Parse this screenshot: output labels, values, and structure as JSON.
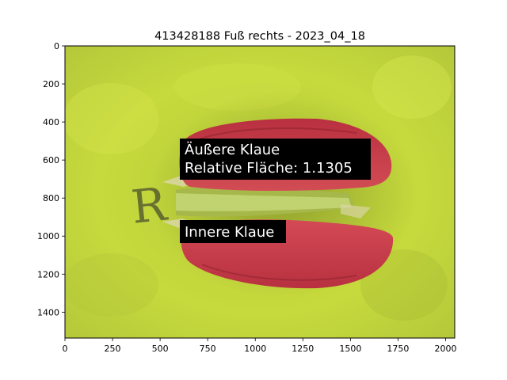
{
  "figure": {
    "title": "413428188 Fuß rechts - 2023_04_18"
  },
  "axes": {
    "x_ticks": [
      0,
      250,
      500,
      750,
      1000,
      1250,
      1500,
      1750,
      2000
    ],
    "y_ticks": [
      0,
      200,
      400,
      600,
      800,
      1000,
      1200,
      1400
    ],
    "x_range": [
      0,
      2048
    ],
    "y_range": [
      1536,
      0
    ]
  },
  "annotations": {
    "outer": {
      "line1": "Äußere Klaue",
      "line2": "Relative Fläche: 1.1305"
    },
    "inner": {
      "line1": "Innere Klaue"
    }
  },
  "colors": {
    "background": "#c9dc3c",
    "claw": "#c9384a",
    "label_bg": "#000000",
    "label_text": "#ffffff"
  }
}
